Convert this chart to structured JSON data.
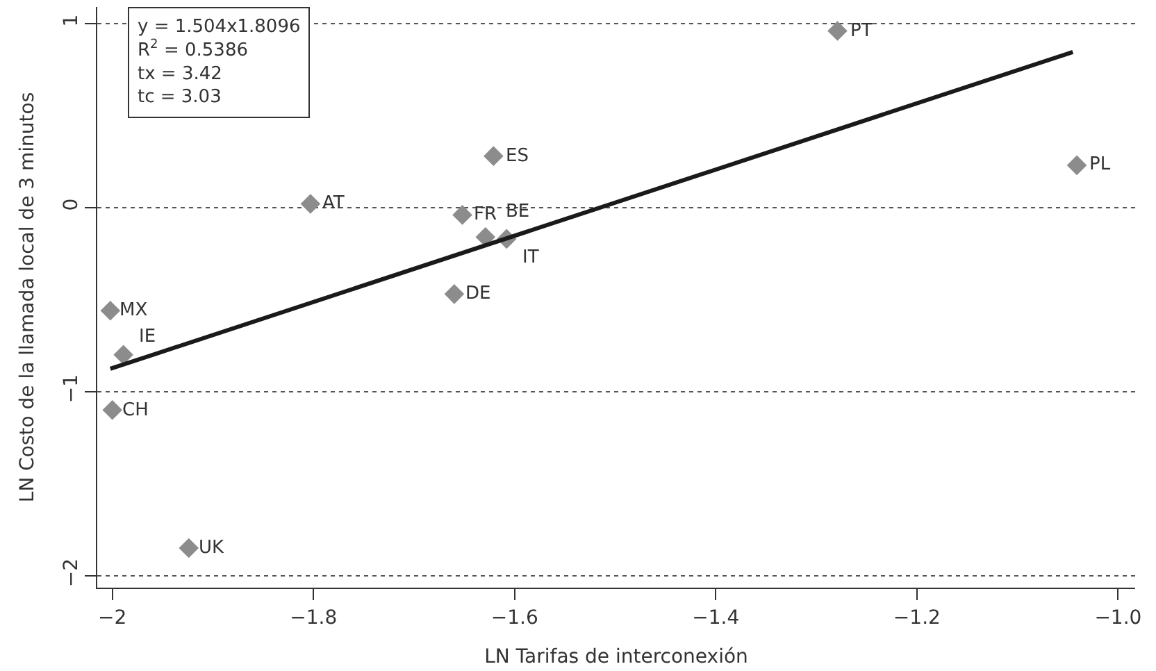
{
  "chart_data": {
    "type": "scatter",
    "xlabel": "LN Tarifas de interconexión",
    "ylabel": "LN Costo de la llamada local de 3 minutos",
    "annotations": [
      "y = 1.504x1.8096",
      "R$^{2}$ = 0.5386",
      "tx = 3.42",
      "tc = 3.03"
    ],
    "series": [
      {
        "color": "#8c8c8c",
        "marker": "diamond",
        "x": [
          -2.002,
          -1.989,
          -2.0,
          -1.924,
          -1.803,
          -1.652,
          -1.629,
          -1.608,
          -1.66,
          -1.621,
          -1.279,
          -1.041
        ],
        "values": [
          -0.56,
          -0.8,
          -1.1,
          -1.85,
          0.02,
          -0.04,
          -0.16,
          -0.17,
          -0.47,
          0.28,
          0.96,
          0.23
        ],
        "value_labels": [
          "MX",
          "IE",
          "CH",
          "UK",
          "AT",
          "FR",
          "BE",
          "IT",
          "DE",
          "ES",
          "PT",
          "PL"
        ]
      },
      {
        "type": "line",
        "color": "#1a1a1a",
        "marker": "none",
        "x": [
          -2.002,
          -1.045
        ],
        "values": [
          -0.876,
          0.845
        ]
      }
    ],
    "xlim": [
      -2.015,
      -0.983
    ],
    "xticks": [
      {
        "value": -2,
        "label": "−2"
      },
      {
        "value": -1.8,
        "label": "−1.8"
      },
      {
        "value": -1.6,
        "label": "−1.6"
      },
      {
        "value": -1.4,
        "label": "−1.4"
      },
      {
        "value": -1.2,
        "label": "−1.2"
      },
      {
        "value": -1.0,
        "label": "−1.0"
      }
    ],
    "ylim": [
      -2.065,
      1.09
    ],
    "yticks": [
      {
        "value": -2,
        "label": "−2"
      },
      {
        "value": -1,
        "label": "−1"
      },
      0,
      1
    ],
    "grid": "y"
  }
}
